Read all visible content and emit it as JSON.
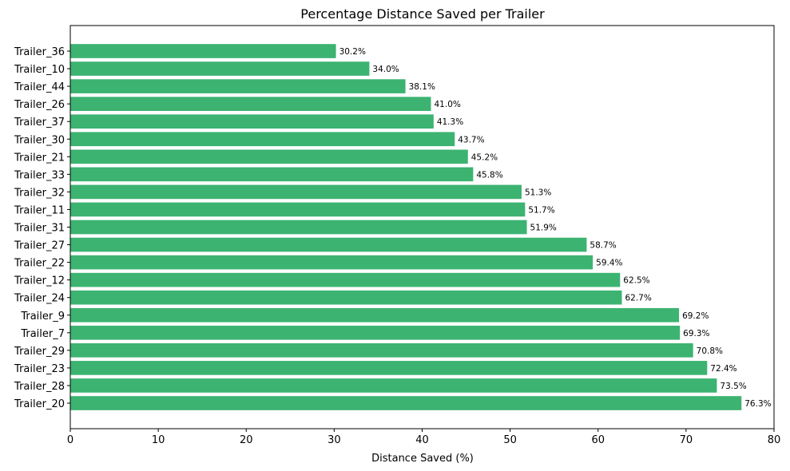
{
  "chart_data": {
    "type": "bar",
    "orientation": "horizontal",
    "title": "Percentage Distance Saved per Trailer",
    "xlabel": "Distance Saved (%)",
    "ylabel": "",
    "xlim": [
      0,
      80
    ],
    "xticks": [
      "0",
      "10",
      "20",
      "30",
      "40",
      "50",
      "60",
      "70",
      "80"
    ],
    "grid": false,
    "bar_color": "#3cb371",
    "categories": [
      "Trailer_36",
      "Trailer_10",
      "Trailer_44",
      "Trailer_26",
      "Trailer_37",
      "Trailer_30",
      "Trailer_21",
      "Trailer_33",
      "Trailer_32",
      "Trailer_11",
      "Trailer_31",
      "Trailer_27",
      "Trailer_22",
      "Trailer_12",
      "Trailer_24",
      "Trailer_9",
      "Trailer_7",
      "Trailer_29",
      "Trailer_23",
      "Trailer_28",
      "Trailer_20"
    ],
    "values": [
      30.2,
      34.0,
      38.1,
      41.0,
      41.3,
      43.7,
      45.2,
      45.8,
      51.3,
      51.7,
      51.9,
      58.7,
      59.4,
      62.5,
      62.7,
      69.2,
      69.3,
      70.8,
      72.4,
      73.5,
      76.3
    ],
    "labels": [
      "30.2%",
      "34.0%",
      "38.1%",
      "41.0%",
      "41.3%",
      "43.7%",
      "45.2%",
      "45.8%",
      "51.3%",
      "51.7%",
      "51.9%",
      "58.7%",
      "59.4%",
      "62.5%",
      "62.7%",
      "69.2%",
      "69.3%",
      "70.8%",
      "72.4%",
      "73.5%",
      "76.3%"
    ]
  }
}
